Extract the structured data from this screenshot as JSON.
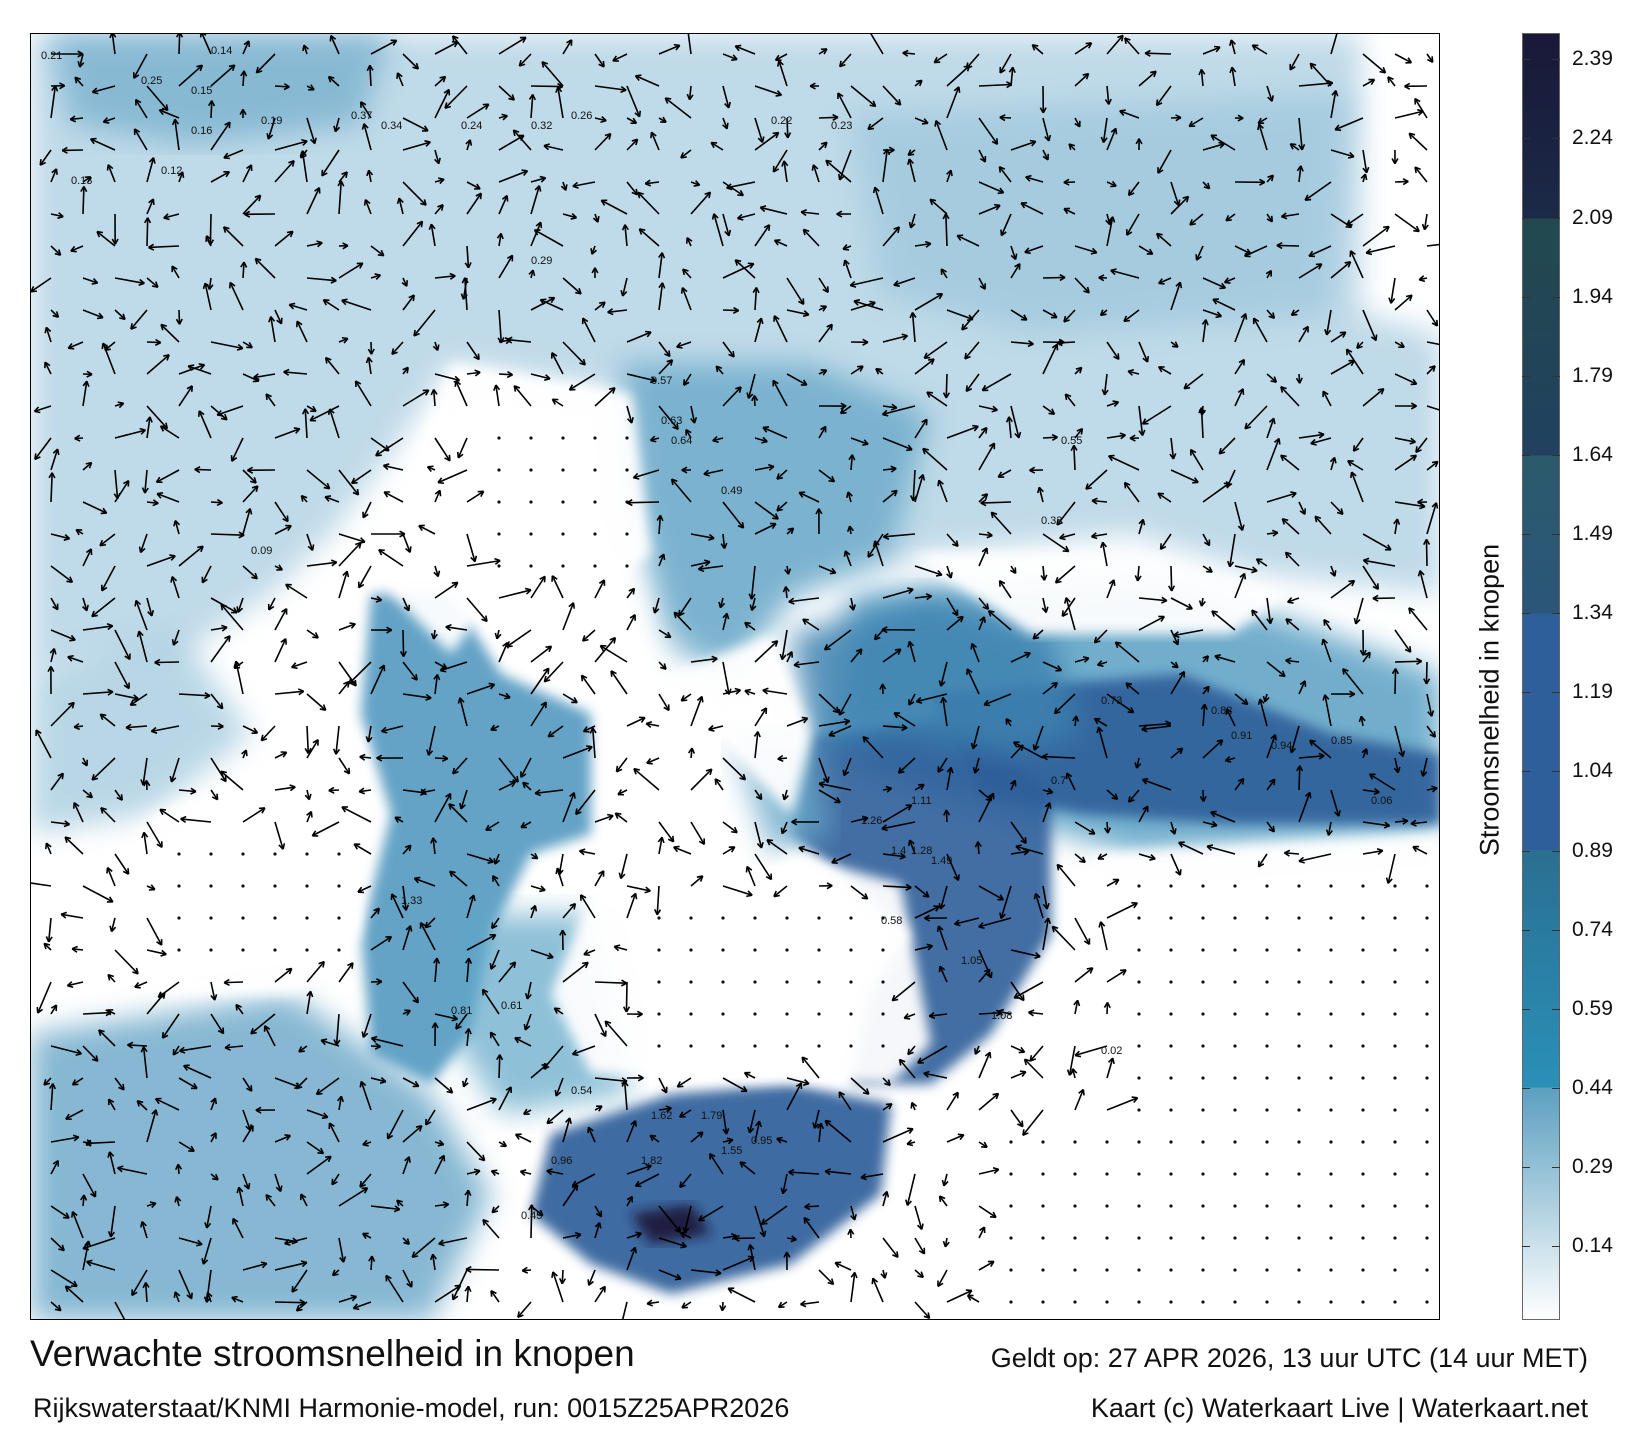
{
  "map": {
    "title": "Verwachte stroomsnelheid in knopen",
    "valid_time": "Geldt op: 27 APR 2026, 13 uur UTC (14 uur MET)",
    "source": "Rijkswaterstaat/KNMI Harmonie-model, run: 0015Z25APR2026",
    "credit": "Kaart (c) Waterkaart Live | Waterkaart.net",
    "sample_labels": [
      "0.21",
      "0.25",
      "0.14",
      "0.15",
      "0.16",
      "0.19",
      "0.37",
      "0.34",
      "0.24",
      "0.32",
      "0.26",
      "0.22",
      "0.23",
      "0.13",
      "0.12",
      "0.29",
      "0.57",
      "0.63",
      "0.64",
      "0.49",
      "0.73",
      "0.82",
      "0.91",
      "0.94",
      "0.85",
      "1.26",
      "1.4",
      "1.28",
      "1.49",
      "1.62",
      "1.79",
      "1.82",
      "1.55",
      "0.96",
      "0.54",
      "0.61",
      "0.81",
      "1.05",
      "1.08",
      "0.58",
      "0.45",
      "0.33",
      "0.06",
      "0.09",
      "0.02",
      "0.55",
      "0.7",
      "1.33",
      "1.11",
      "0.95"
    ]
  },
  "colorbar": {
    "label": "Stroomsnelheid in knopen",
    "range": [
      0,
      2.44
    ],
    "ticks": [
      "2.39",
      "2.24",
      "2.09",
      "1.94",
      "1.79",
      "1.64",
      "1.49",
      "1.34",
      "1.19",
      "1.04",
      "0.89",
      "0.74",
      "0.59",
      "0.44",
      "0.29",
      "0.14"
    ],
    "colors": {
      "low": "#ffffff",
      "light": "#5b9fc0",
      "teal": "#2a90b8",
      "teal_dark": "#2a6f92",
      "blue": "#2e5f9a",
      "slate": "#2b5679",
      "deep": "#21415f",
      "navy": "#1a1838"
    }
  }
}
